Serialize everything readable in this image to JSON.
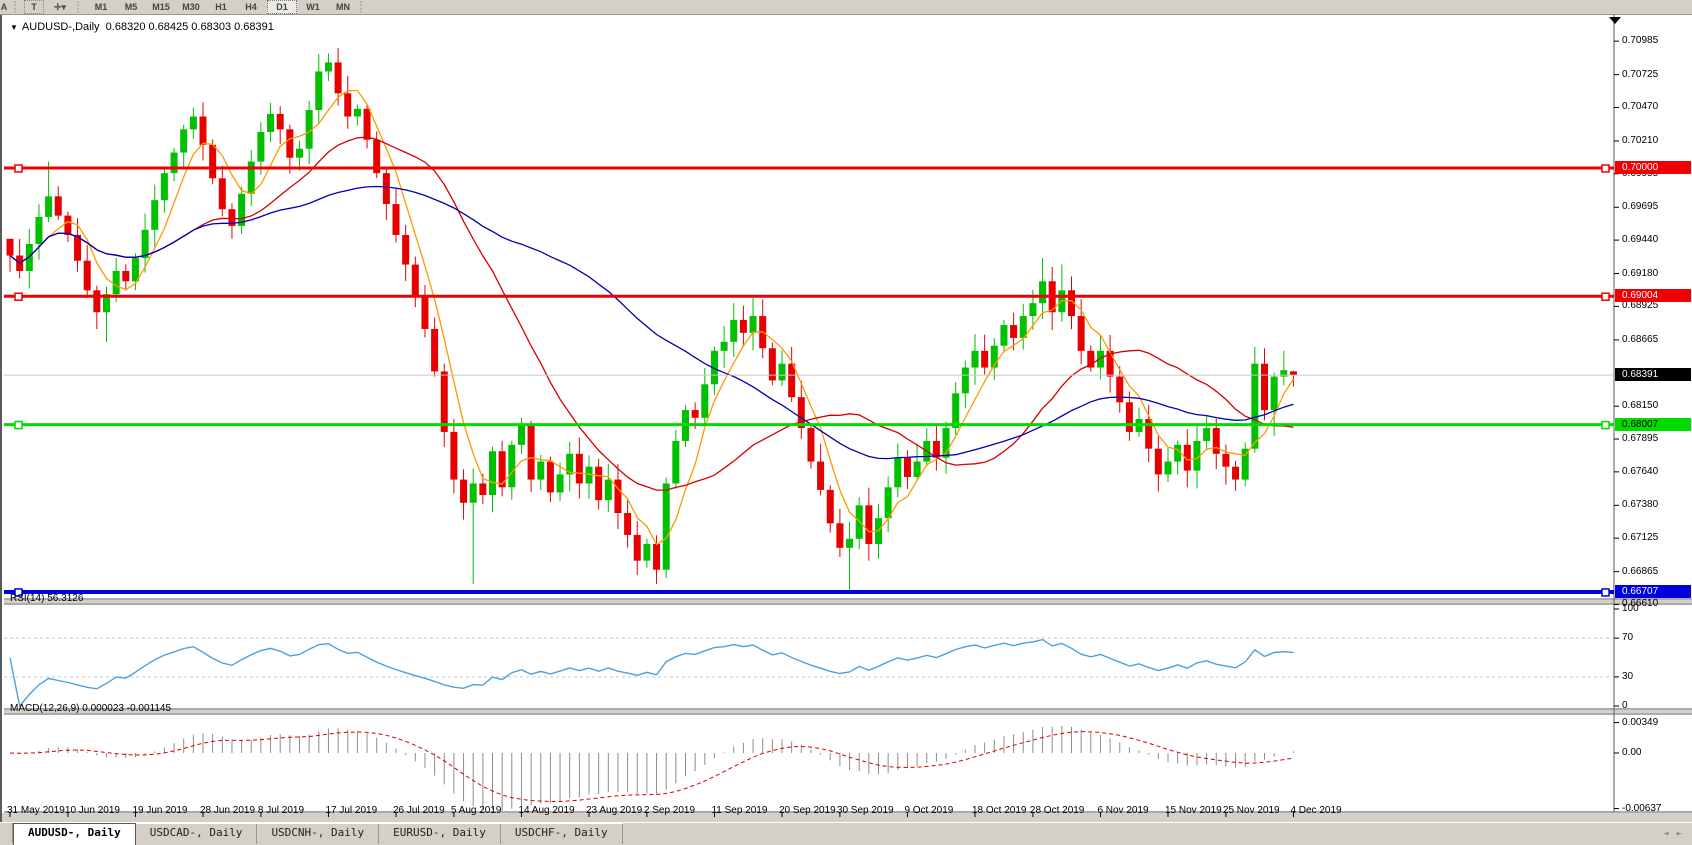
{
  "window": {
    "legend_marker": "▼",
    "title_symbol": "AUDUSD-,Daily",
    "title_ohlc": "0.68320 0.68425 0.68303 0.68391"
  },
  "toolbar": {
    "partial_button": "A",
    "text_tool": "T",
    "cursor_tool_icon": "crosshair-dropdown",
    "dropdown_glyph": "▾",
    "timeframes": [
      "M1",
      "M5",
      "M15",
      "M30",
      "H1",
      "H4",
      "D1",
      "W1",
      "MN"
    ],
    "active_timeframe": "D1"
  },
  "price_axis": {
    "ticks": [
      "0.70985",
      "0.70725",
      "0.70470",
      "0.70210",
      "0.69955",
      "0.69695",
      "0.69440",
      "0.69180",
      "0.68925",
      "0.68665",
      "0.68150",
      "0.67895",
      "0.67640",
      "0.67380",
      "0.67125",
      "0.66865",
      "0.66610"
    ],
    "current_price": {
      "value": 0.68391,
      "label": "0.68391",
      "line_color": "#C6C6C6",
      "badge_bg": "#000000",
      "badge_text": "#FFFFFF"
    }
  },
  "levels": [
    {
      "price": 0.7,
      "label": "0.70000",
      "color": "#F00000",
      "thickness": 3,
      "badge_text": "#FFFFFF"
    },
    {
      "price": 0.69004,
      "label": "0.69004",
      "color": "#F00000",
      "thickness": 3,
      "badge_text": "#FFFFFF"
    },
    {
      "price": 0.68007,
      "label": "0.68007",
      "color": "#00DC00",
      "thickness": 3,
      "badge_text": "#000000"
    },
    {
      "price": 0.66707,
      "label": "0.66707",
      "color": "#0000DC",
      "thickness": 4,
      "badge_text": "#FFFFFF"
    }
  ],
  "time_axis": {
    "ticks": [
      {
        "i": 0,
        "label": "31 May 2019"
      },
      {
        "i": 6,
        "label": "10 Jun 2019"
      },
      {
        "i": 13,
        "label": "19 Jun 2019"
      },
      {
        "i": 20,
        "label": "28 Jun 2019"
      },
      {
        "i": 26,
        "label": "8 Jul 2019"
      },
      {
        "i": 33,
        "label": "17 Jul 2019"
      },
      {
        "i": 40,
        "label": "26 Jul 2019"
      },
      {
        "i": 46,
        "label": "5 Aug 2019"
      },
      {
        "i": 53,
        "label": "14 Aug 2019"
      },
      {
        "i": 60,
        "label": "23 Aug 2019"
      },
      {
        "i": 66,
        "label": "2 Sep 2019"
      },
      {
        "i": 73,
        "label": "11 Sep 2019"
      },
      {
        "i": 80,
        "label": "20 Sep 2019"
      },
      {
        "i": 86,
        "label": "30 Sep 2019"
      },
      {
        "i": 93,
        "label": "9 Oct 2019"
      },
      {
        "i": 100,
        "label": "18 Oct 2019"
      },
      {
        "i": 106,
        "label": "28 Oct 2019"
      },
      {
        "i": 113,
        "label": "6 Nov 2019"
      },
      {
        "i": 120,
        "label": "15 Nov 2019"
      },
      {
        "i": 126,
        "label": "25 Nov 2019"
      },
      {
        "i": 133,
        "label": "4 Dec 2019"
      }
    ]
  },
  "chart_data": {
    "type": "candlestick",
    "symbol": "AUDUSD",
    "timeframe": "Daily",
    "bull_color": "#00C000",
    "bear_color": "#E60000",
    "closes": [
      0.6932,
      0.692,
      0.6941,
      0.6962,
      0.6978,
      0.6963,
      0.6948,
      0.6928,
      0.6905,
      0.6888,
      0.6902,
      0.692,
      0.6912,
      0.693,
      0.6952,
      0.6975,
      0.6996,
      0.7012,
      0.703,
      0.704,
      0.7018,
      0.6992,
      0.6968,
      0.6955,
      0.698,
      0.7005,
      0.7028,
      0.7042,
      0.703,
      0.7008,
      0.7015,
      0.7045,
      0.7075,
      0.7082,
      0.7058,
      0.704,
      0.7046,
      0.7022,
      0.6996,
      0.6972,
      0.6948,
      0.6925,
      0.69,
      0.6875,
      0.6842,
      0.6795,
      0.6758,
      0.674,
      0.6755,
      0.6746,
      0.678,
      0.6752,
      0.6785,
      0.68,
      0.6758,
      0.6772,
      0.6748,
      0.6762,
      0.6778,
      0.6755,
      0.6768,
      0.6742,
      0.6758,
      0.6732,
      0.6715,
      0.6695,
      0.6708,
      0.6688,
      0.6755,
      0.6788,
      0.6812,
      0.6806,
      0.6832,
      0.6858,
      0.6865,
      0.6882,
      0.6872,
      0.6885,
      0.686,
      0.6835,
      0.6848,
      0.6822,
      0.6798,
      0.6772,
      0.675,
      0.6724,
      0.6705,
      0.6712,
      0.6738,
      0.6708,
      0.6728,
      0.6752,
      0.6775,
      0.676,
      0.6772,
      0.6788,
      0.6775,
      0.6798,
      0.6825,
      0.6845,
      0.6858,
      0.6845,
      0.6862,
      0.6878,
      0.6868,
      0.6885,
      0.6895,
      0.6912,
      0.6888,
      0.6905,
      0.6885,
      0.6858,
      0.6845,
      0.6858,
      0.6838,
      0.6818,
      0.6795,
      0.6805,
      0.6782,
      0.6762,
      0.6772,
      0.6785,
      0.6765,
      0.6788,
      0.6798,
      0.6778,
      0.6768,
      0.6758,
      0.6782,
      0.6848,
      0.6812,
      0.6838,
      0.6843,
      0.68391
    ],
    "wick_overrides": {
      "0": {
        "o": 0.6945
      },
      "4": {
        "h": 0.7005
      },
      "10": {
        "l": 0.6865
      },
      "19": {
        "h": 0.7047
      },
      "23": {
        "l": 0.6945
      },
      "28": {
        "h": 0.7048
      },
      "33": {
        "h": 0.7089
      },
      "48": {
        "l": 0.6677
      },
      "53": {
        "h": 0.6806
      },
      "67": {
        "l": 0.6677
      },
      "75": {
        "h": 0.6895
      },
      "77": {
        "h": 0.6899
      },
      "87": {
        "l": 0.667
      },
      "107": {
        "h": 0.693
      },
      "109": {
        "h": 0.6925
      },
      "129": {
        "h": 0.6861
      },
      "131": {
        "l": 0.6792
      },
      "132": {
        "h": 0.6858
      },
      "133": {
        "o": 0.6842,
        "h": 0.68425,
        "l": 0.68303,
        "c": 0.68391
      }
    },
    "moving_averages": [
      {
        "period": 5,
        "color": "#FF9900"
      },
      {
        "period": 20,
        "color": "#D40000"
      },
      {
        "period": 45,
        "color": "#0000B4"
      }
    ]
  },
  "rsi_panel": {
    "label": "RSI(14)",
    "value": "56.3126",
    "period": 14,
    "line_color": "#4E9FDF",
    "level_labels": [
      "100",
      "70",
      "30",
      "0"
    ],
    "level_values": [
      100,
      70,
      30,
      0
    ],
    "dashed_levels": [
      70,
      30
    ]
  },
  "macd_panel": {
    "label": "MACD(12,26,9)",
    "values": "0.000023 -0.001145",
    "axis_labels": [
      "0.00349",
      "0.00",
      "-0.00637"
    ],
    "axis_values": [
      0.00349,
      0.0,
      -0.00637
    ],
    "histogram_color": "#8C8C8C",
    "signal_color": "#D40000"
  },
  "tabs": {
    "items": [
      "AUDUSD-, Daily",
      "USDCAD-, Daily",
      "USDCNH-, Daily",
      "EURUSD-, Daily",
      "USDCHF-, Daily"
    ],
    "active_index": 0
  },
  "icons": {
    "scroll_left": "◄",
    "scroll_right": "►",
    "shift_marker": "▼"
  }
}
